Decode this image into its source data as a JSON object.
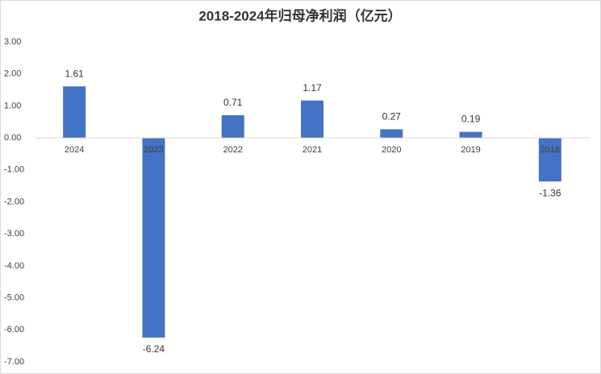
{
  "chart_data": {
    "type": "bar",
    "title": "2018-2024年归母净利润（亿元）",
    "categories": [
      "2024",
      "2023",
      "2022",
      "2021",
      "2020",
      "2019",
      "2018"
    ],
    "values": [
      1.61,
      -6.24,
      0.71,
      1.17,
      0.27,
      0.19,
      -1.36
    ],
    "color": "#4472c4",
    "ylim": [
      -7,
      3
    ],
    "yticks": [
      {
        "value": 3,
        "label": "3.00"
      },
      {
        "value": 2,
        "label": "2.00"
      },
      {
        "value": 1,
        "label": "1.00"
      },
      {
        "value": 0,
        "label": "0.00"
      },
      {
        "value": -1,
        "label": "-1.00"
      },
      {
        "value": -2,
        "label": "-2.00"
      },
      {
        "value": -3,
        "label": "-3.00"
      },
      {
        "value": -4,
        "label": "-4.00"
      },
      {
        "value": -5,
        "label": "-5.00"
      },
      {
        "value": -6,
        "label": "-6.00"
      },
      {
        "value": -7,
        "label": "-7.00"
      }
    ],
    "grid": false
  }
}
